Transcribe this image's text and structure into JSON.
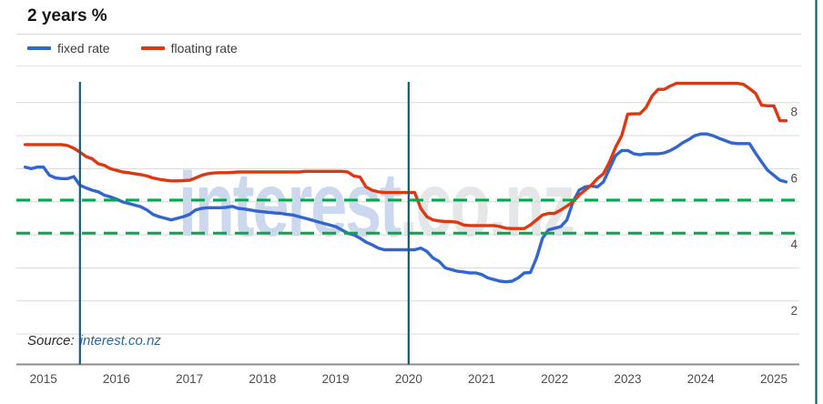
{
  "header": {
    "title": "2 years %"
  },
  "legend": [
    {
      "label": "fixed rate",
      "color": "#3366cc"
    },
    {
      "label": "floating rate",
      "color": "#dc3912"
    }
  ],
  "watermark": {
    "part1": "interest",
    "part2": ".co.nz"
  },
  "source": {
    "prefix": "Source:",
    "link": "interest.co.nz"
  },
  "colors": {
    "fixed_line": "#3366cc",
    "floating_line": "#dc3912",
    "reference_dashed": "#0aa64f",
    "event_marker": "#1a5a72",
    "gridline": "#d9d9d9",
    "axis": "#8c8c8c",
    "tick_text": "#4d4d4d"
  },
  "chart_data": {
    "type": "line",
    "title": "2 years %",
    "ylabel": "%",
    "x_ticks": [
      2015,
      2016,
      2017,
      2018,
      2019,
      2020,
      2021,
      2022,
      2023,
      2024,
      2025
    ],
    "y_ticks": [
      8,
      6,
      4,
      2
    ],
    "gridlines_y": [
      1,
      2,
      3,
      4,
      5,
      6,
      7,
      8
    ],
    "ylim": [
      0.1,
      8.66
    ],
    "xlim": [
      2014.6,
      2025.6
    ],
    "grid": true,
    "legend_position": "top-left",
    "reference_lines_y": [
      5.05,
      4.05
    ],
    "vertical_markers_x": [
      2015.5,
      2020.0
    ],
    "right_edge_marker_x": 2025.58,
    "x_start": 2014.75,
    "x_step": 0.0833333,
    "series": [
      {
        "name": "fixed rate",
        "color": "#3366cc",
        "values": [
          6.05,
          6.0,
          6.05,
          6.05,
          5.8,
          5.72,
          5.7,
          5.7,
          5.76,
          5.5,
          5.42,
          5.35,
          5.3,
          5.2,
          5.15,
          5.08,
          5.0,
          4.95,
          4.9,
          4.85,
          4.75,
          4.62,
          4.55,
          4.5,
          4.45,
          4.5,
          4.55,
          4.62,
          4.75,
          4.8,
          4.82,
          4.82,
          4.82,
          4.83,
          4.86,
          4.8,
          4.78,
          4.75,
          4.72,
          4.7,
          4.68,
          4.66,
          4.65,
          4.62,
          4.6,
          4.55,
          4.5,
          4.45,
          4.4,
          4.35,
          4.3,
          4.25,
          4.15,
          4.05,
          4.0,
          3.9,
          3.78,
          3.7,
          3.6,
          3.55,
          3.55,
          3.55,
          3.55,
          3.55,
          3.55,
          3.6,
          3.5,
          3.3,
          3.2,
          3.0,
          2.95,
          2.9,
          2.88,
          2.85,
          2.85,
          2.8,
          2.7,
          2.65,
          2.6,
          2.58,
          2.6,
          2.7,
          2.85,
          2.86,
          3.3,
          3.9,
          4.15,
          4.2,
          4.25,
          4.45,
          5.0,
          5.35,
          5.45,
          5.48,
          5.45,
          5.6,
          6.0,
          6.4,
          6.55,
          6.55,
          6.45,
          6.42,
          6.45,
          6.45,
          6.45,
          6.48,
          6.55,
          6.65,
          6.78,
          6.88,
          7.0,
          7.05,
          7.05,
          7.0,
          6.92,
          6.85,
          6.78,
          6.76,
          6.76,
          6.76,
          6.47,
          6.2,
          5.95,
          5.8,
          5.65,
          5.6
        ]
      },
      {
        "name": "floating rate",
        "color": "#dc3912",
        "values": [
          6.73,
          6.73,
          6.73,
          6.73,
          6.73,
          6.73,
          6.73,
          6.7,
          6.62,
          6.5,
          6.37,
          6.3,
          6.15,
          6.1,
          6.0,
          5.95,
          5.9,
          5.88,
          5.85,
          5.82,
          5.78,
          5.72,
          5.68,
          5.65,
          5.63,
          5.63,
          5.64,
          5.65,
          5.72,
          5.8,
          5.85,
          5.87,
          5.88,
          5.88,
          5.89,
          5.9,
          5.9,
          5.9,
          5.9,
          5.9,
          5.9,
          5.9,
          5.9,
          5.9,
          5.9,
          5.9,
          5.92,
          5.92,
          5.92,
          5.92,
          5.92,
          5.92,
          5.92,
          5.9,
          5.78,
          5.75,
          5.45,
          5.35,
          5.3,
          5.28,
          5.28,
          5.28,
          5.28,
          5.28,
          5.28,
          4.8,
          4.55,
          4.45,
          4.42,
          4.4,
          4.4,
          4.38,
          4.3,
          4.28,
          4.28,
          4.28,
          4.28,
          4.28,
          4.25,
          4.2,
          4.19,
          4.19,
          4.19,
          4.3,
          4.45,
          4.6,
          4.65,
          4.65,
          4.75,
          4.87,
          5.0,
          5.2,
          5.35,
          5.5,
          5.7,
          5.85,
          6.2,
          6.65,
          7.0,
          7.65,
          7.66,
          7.66,
          7.85,
          8.2,
          8.4,
          8.4,
          8.5,
          8.58,
          8.58,
          8.58,
          8.58,
          8.58,
          8.58,
          8.58,
          8.58,
          8.58,
          8.58,
          8.58,
          8.55,
          8.42,
          8.28,
          7.92,
          7.9,
          7.9,
          7.45,
          7.45
        ]
      }
    ]
  }
}
